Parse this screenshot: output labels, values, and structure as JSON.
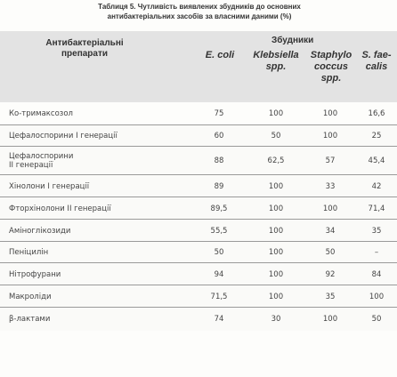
{
  "caption": {
    "line1": "Таблиця 5. Чутливість виявлених збудників до основних",
    "line2": "антибактеріальних засобів за власними даними (%)"
  },
  "header": {
    "drug_label_line1": "Антибактеріальні",
    "drug_label_line2": "препарати",
    "group_label": "Збудники",
    "columns": [
      {
        "line1": "E. coli",
        "line2": ""
      },
      {
        "line1": "Klebsiella",
        "line2": "spp."
      },
      {
        "line1": "Staphylo",
        "line2": "coccus",
        "line3": "spp."
      },
      {
        "line1": "S. fae-",
        "line2": "calis"
      }
    ]
  },
  "rows": [
    {
      "name": "Ко-тримаксозол",
      "values": [
        "75",
        "100",
        "100",
        "16,6"
      ]
    },
    {
      "name": "Цефалоспорини І генерації",
      "values": [
        "60",
        "50",
        "100",
        "25"
      ]
    },
    {
      "name": "Цефалоспорини",
      "name2": "ІІ генерації",
      "values": [
        "88",
        "62,5",
        "57",
        "45,4"
      ]
    },
    {
      "name": "Хінолони І генерації",
      "values": [
        "89",
        "100",
        "33",
        "42"
      ]
    },
    {
      "name": "Фторхінолони ІІ генерації",
      "values": [
        "89,5",
        "100",
        "100",
        "71,4"
      ]
    },
    {
      "name": "Аміноглікозиди",
      "values": [
        "55,5",
        "100",
        "34",
        "35"
      ]
    },
    {
      "name": "Пеніцилін",
      "values": [
        "50",
        "100",
        "50",
        "–"
      ]
    },
    {
      "name": "Нітрофурани",
      "values": [
        "94",
        "100",
        "92",
        "84"
      ]
    },
    {
      "name": "Макроліди",
      "values": [
        "71,5",
        "100",
        "35",
        "100"
      ]
    },
    {
      "name": "β-лактами",
      "values": [
        "74",
        "30",
        "100",
        "50"
      ]
    }
  ]
}
